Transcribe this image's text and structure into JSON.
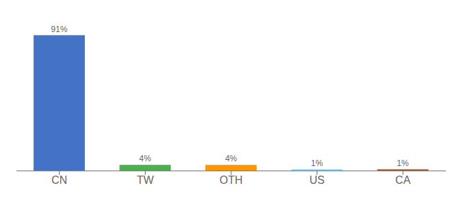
{
  "chart_data": {
    "type": "bar",
    "categories": [
      "CN",
      "TW",
      "OTH",
      "US",
      "CA"
    ],
    "values": [
      91,
      4,
      4,
      1,
      1
    ],
    "value_labels": [
      "91%",
      "4%",
      "4%",
      "1%",
      "1%"
    ],
    "colors": [
      "#4472c4",
      "#4caf50",
      "#ff9800",
      "#81d4fa",
      "#a0522d"
    ],
    "ylim": [
      0,
      100
    ],
    "data_labels": true,
    "tick_labels": "x",
    "grid": false
  }
}
